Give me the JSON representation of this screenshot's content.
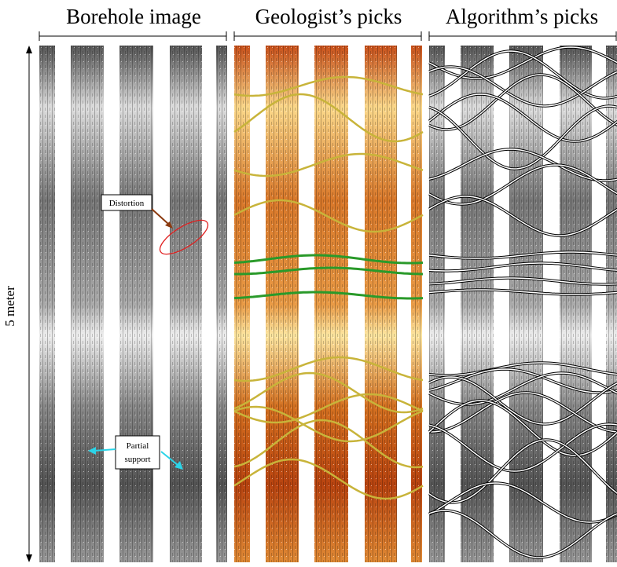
{
  "panels": [
    {
      "title": "Borehole image"
    },
    {
      "title": "Geologist’s picks"
    },
    {
      "title": "Algorithm’s picks"
    }
  ],
  "depth_label": "5 meter",
  "annotations": {
    "distortion": "Distortion",
    "partial_support": [
      "Partial",
      "support"
    ]
  }
}
